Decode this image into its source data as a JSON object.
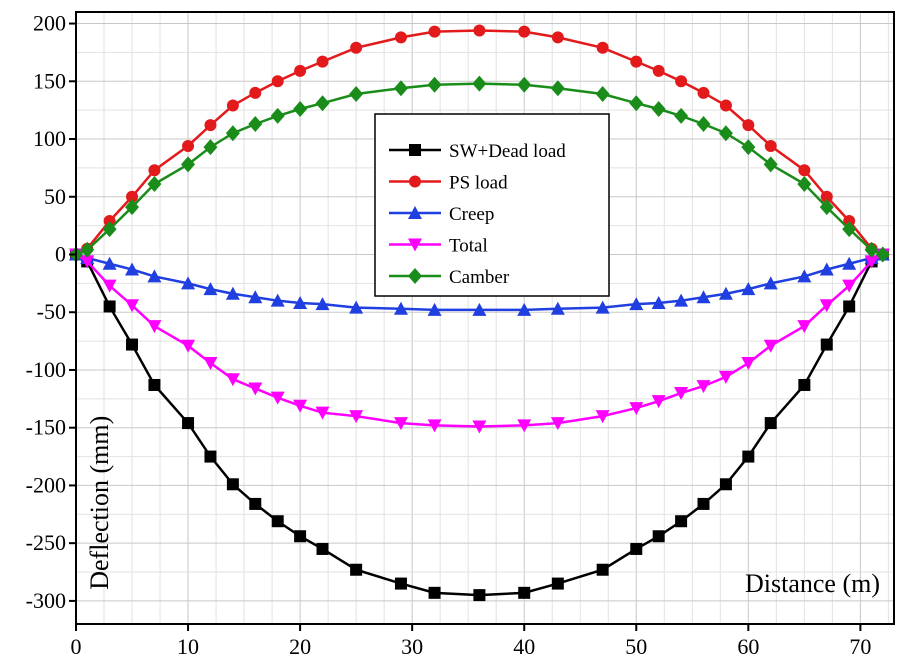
{
  "chart_data": {
    "type": "line",
    "title": "",
    "xlabel": "Distance (m)",
    "ylabel": "Deflection (mm)",
    "xlim": [
      0,
      73
    ],
    "ylim": [
      -320,
      210
    ],
    "x_ticks": [
      0,
      10,
      20,
      30,
      40,
      50,
      60,
      70
    ],
    "y_ticks": [
      200,
      150,
      100,
      50,
      0,
      -50,
      -100,
      -150,
      -200,
      -250,
      -300
    ],
    "grid": true,
    "legend_position": "center",
    "series": [
      {
        "name": "SW+Dead load",
        "color": "#000000",
        "marker": "square",
        "points": [
          [
            0,
            0
          ],
          [
            1,
            -6
          ],
          [
            3,
            -45
          ],
          [
            5,
            -78
          ],
          [
            7,
            -113
          ],
          [
            10,
            -146
          ],
          [
            12,
            -175
          ],
          [
            14,
            -199
          ],
          [
            16,
            -216
          ],
          [
            18,
            -231
          ],
          [
            20,
            -244
          ],
          [
            22,
            -255
          ],
          [
            25,
            -273
          ],
          [
            29,
            -285
          ],
          [
            32,
            -293
          ],
          [
            36,
            -295
          ],
          [
            40,
            -293
          ],
          [
            43,
            -285
          ],
          [
            47,
            -273
          ],
          [
            50,
            -255
          ],
          [
            52,
            -244
          ],
          [
            54,
            -231
          ],
          [
            56,
            -216
          ],
          [
            58,
            -199
          ],
          [
            60,
            -175
          ],
          [
            62,
            -146
          ],
          [
            65,
            -113
          ],
          [
            67,
            -78
          ],
          [
            69,
            -45
          ],
          [
            71,
            -6
          ],
          [
            72,
            0
          ]
        ]
      },
      {
        "name": "PS load",
        "color": "#e31a1c",
        "marker": "circle",
        "points": [
          [
            0,
            0
          ],
          [
            1,
            5
          ],
          [
            3,
            29
          ],
          [
            5,
            50
          ],
          [
            7,
            73
          ],
          [
            10,
            94
          ],
          [
            12,
            112
          ],
          [
            14,
            129
          ],
          [
            16,
            140
          ],
          [
            18,
            150
          ],
          [
            20,
            159
          ],
          [
            22,
            167
          ],
          [
            25,
            179
          ],
          [
            29,
            188
          ],
          [
            32,
            193
          ],
          [
            36,
            194
          ],
          [
            40,
            193
          ],
          [
            43,
            188
          ],
          [
            47,
            179
          ],
          [
            50,
            167
          ],
          [
            52,
            159
          ],
          [
            54,
            150
          ],
          [
            56,
            140
          ],
          [
            58,
            129
          ],
          [
            60,
            112
          ],
          [
            62,
            94
          ],
          [
            65,
            73
          ],
          [
            67,
            50
          ],
          [
            69,
            29
          ],
          [
            71,
            5
          ],
          [
            72,
            0
          ]
        ]
      },
      {
        "name": "Creep",
        "color": "#1f3fe0",
        "marker": "triangle-up",
        "points": [
          [
            0,
            0
          ],
          [
            1,
            -3
          ],
          [
            3,
            -8
          ],
          [
            5,
            -13
          ],
          [
            7,
            -19
          ],
          [
            10,
            -25
          ],
          [
            12,
            -30
          ],
          [
            14,
            -34
          ],
          [
            16,
            -37
          ],
          [
            18,
            -40
          ],
          [
            20,
            -42
          ],
          [
            22,
            -43
          ],
          [
            25,
            -46
          ],
          [
            29,
            -47
          ],
          [
            32,
            -48
          ],
          [
            36,
            -48
          ],
          [
            40,
            -48
          ],
          [
            43,
            -47
          ],
          [
            47,
            -46
          ],
          [
            50,
            -43
          ],
          [
            52,
            -42
          ],
          [
            54,
            -40
          ],
          [
            56,
            -37
          ],
          [
            58,
            -34
          ],
          [
            60,
            -30
          ],
          [
            62,
            -25
          ],
          [
            65,
            -19
          ],
          [
            67,
            -13
          ],
          [
            69,
            -8
          ],
          [
            71,
            -3
          ],
          [
            72,
            0
          ]
        ]
      },
      {
        "name": "Total",
        "color": "#ff00ff",
        "marker": "triangle-down",
        "points": [
          [
            0,
            0
          ],
          [
            1,
            -6
          ],
          [
            3,
            -27
          ],
          [
            5,
            -44
          ],
          [
            7,
            -62
          ],
          [
            10,
            -79
          ],
          [
            12,
            -94
          ],
          [
            14,
            -108
          ],
          [
            16,
            -116
          ],
          [
            18,
            -124
          ],
          [
            20,
            -131
          ],
          [
            22,
            -137
          ],
          [
            25,
            -140
          ],
          [
            29,
            -146
          ],
          [
            32,
            -148
          ],
          [
            36,
            -149
          ],
          [
            40,
            -148
          ],
          [
            43,
            -146
          ],
          [
            47,
            -140
          ],
          [
            50,
            -133
          ],
          [
            52,
            -127
          ],
          [
            54,
            -120
          ],
          [
            56,
            -114
          ],
          [
            58,
            -106
          ],
          [
            60,
            -94
          ],
          [
            62,
            -79
          ],
          [
            65,
            -62
          ],
          [
            67,
            -44
          ],
          [
            69,
            -27
          ],
          [
            71,
            -6
          ],
          [
            72,
            0
          ]
        ]
      },
      {
        "name": "Camber",
        "color": "#1a8c1a",
        "marker": "diamond",
        "points": [
          [
            0,
            0
          ],
          [
            1,
            4
          ],
          [
            3,
            22
          ],
          [
            5,
            41
          ],
          [
            7,
            61
          ],
          [
            10,
            78
          ],
          [
            12,
            93
          ],
          [
            14,
            105
          ],
          [
            16,
            113
          ],
          [
            18,
            120
          ],
          [
            20,
            126
          ],
          [
            22,
            131
          ],
          [
            25,
            139
          ],
          [
            29,
            144
          ],
          [
            32,
            147
          ],
          [
            36,
            148
          ],
          [
            40,
            147
          ],
          [
            43,
            144
          ],
          [
            47,
            139
          ],
          [
            50,
            131
          ],
          [
            52,
            126
          ],
          [
            54,
            120
          ],
          [
            56,
            113
          ],
          [
            58,
            105
          ],
          [
            60,
            93
          ],
          [
            62,
            78
          ],
          [
            65,
            61
          ],
          [
            67,
            41
          ],
          [
            69,
            22
          ],
          [
            71,
            4
          ],
          [
            72,
            0
          ]
        ]
      }
    ]
  }
}
